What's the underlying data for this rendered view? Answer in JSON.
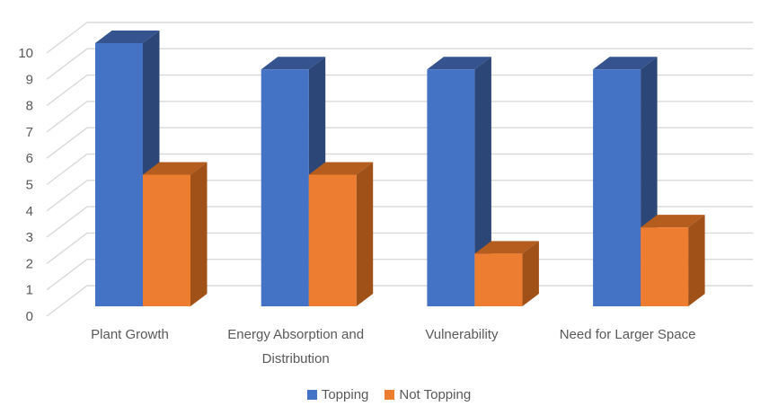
{
  "chart_data": {
    "type": "bar",
    "variant": "3d-clustered-column",
    "title": "",
    "xlabel": "",
    "ylabel": "",
    "categories": [
      "Plant Growth",
      "Energy Absorption and Distribution",
      "Vulnerability",
      "Need for Larger Space"
    ],
    "category_label_lines": [
      [
        "Plant Growth"
      ],
      [
        "Energy Absorption and",
        "Distribution"
      ],
      [
        "Vulnerability"
      ],
      [
        "Need for Larger Space"
      ]
    ],
    "series": [
      {
        "name": "Topping",
        "values": [
          10,
          9,
          9,
          9
        ],
        "color_front": "#4472C4",
        "color_top": "#35548F",
        "color_side": "#2B4677"
      },
      {
        "name": "Not Topping",
        "values": [
          5,
          5,
          2,
          3
        ],
        "color_front": "#ED7D31",
        "color_top": "#B45D1F",
        "color_side": "#A05118"
      }
    ],
    "ylim": [
      0,
      10
    ],
    "ytick_step": 1,
    "yticks": [
      "0",
      "1",
      "2",
      "3",
      "4",
      "5",
      "6",
      "7",
      "8",
      "9",
      "10"
    ],
    "grid": true,
    "gridline_color": "#D9D9D9",
    "axis_text_color": "#595959",
    "legend_position": "bottom"
  }
}
